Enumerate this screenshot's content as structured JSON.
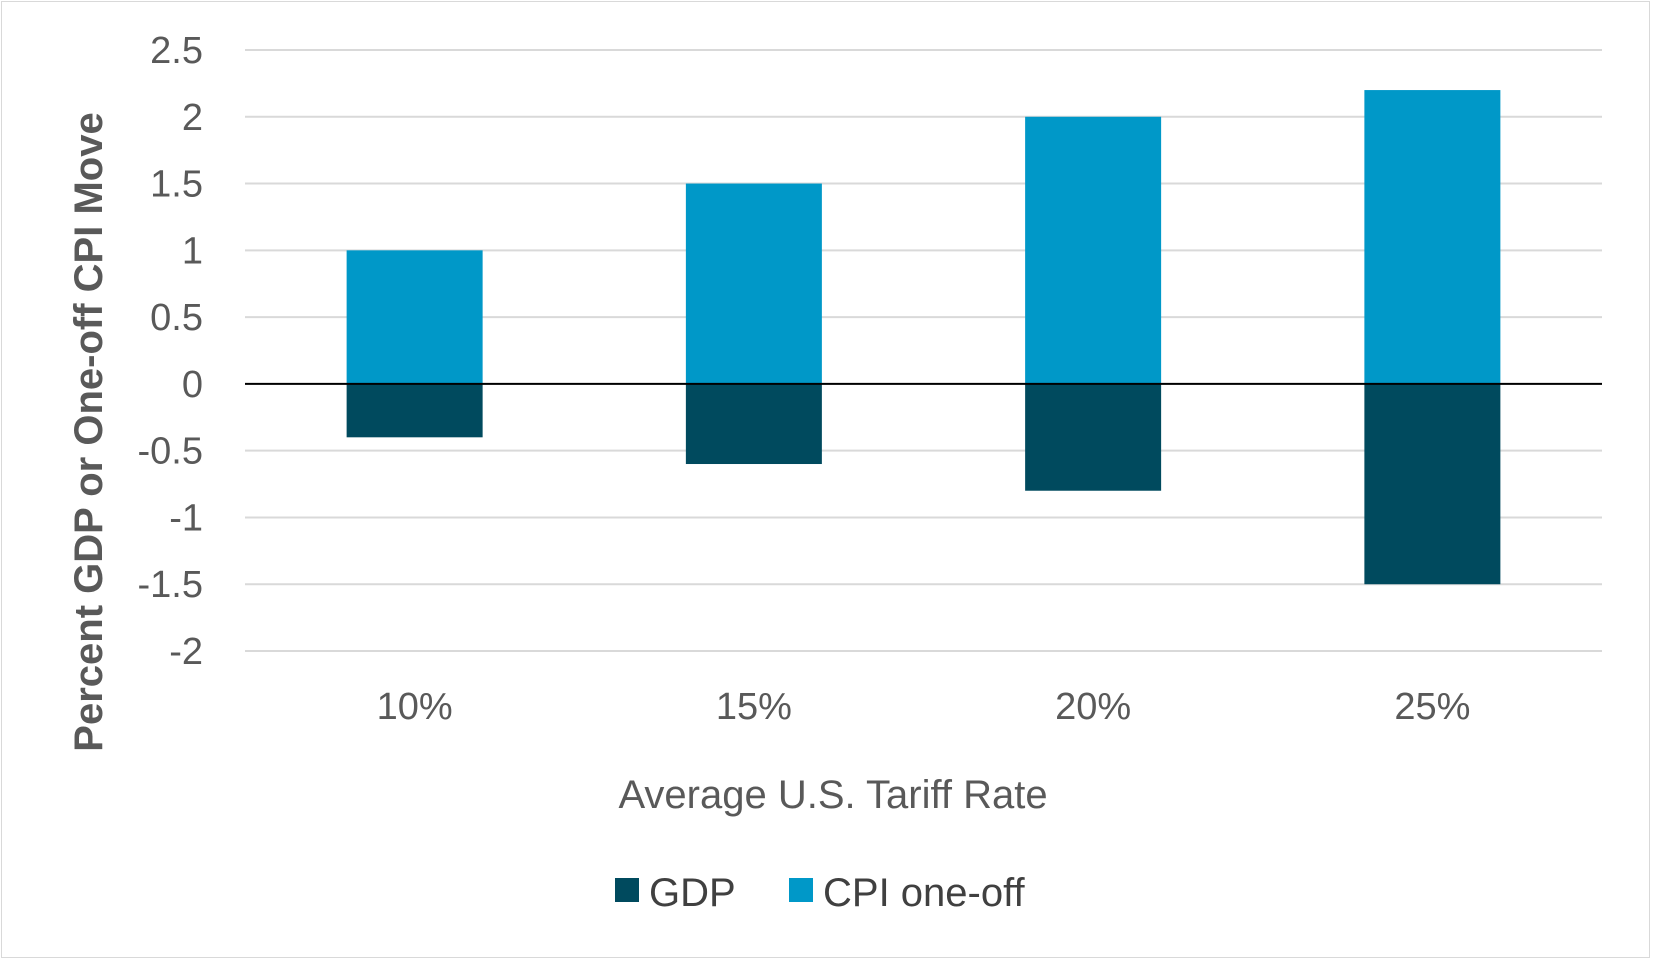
{
  "chart_data": {
    "type": "bar",
    "stacked": true,
    "title": "",
    "categories": [
      "10%",
      "15%",
      "20%",
      "25%"
    ],
    "series": [
      {
        "name": "GDP",
        "values": [
          -0.4,
          -0.6,
          -0.8,
          -1.5
        ],
        "color": "#004a5e"
      },
      {
        "name": "CPI one-off",
        "values": [
          1.0,
          1.5,
          2.0,
          2.2
        ],
        "color": "#0098c8"
      }
    ],
    "xlabel": "Average U.S. Tariff Rate",
    "ylabel": "Percent GDP or One-off CPI Move",
    "ylim": [
      -2,
      2.5
    ],
    "yticks": [
      2.5,
      2,
      1.5,
      1,
      0.5,
      0,
      -0.5,
      -1,
      -1.5,
      -2
    ],
    "ytick_labels": [
      "2.5",
      "2",
      "1.5",
      "1",
      "0.5",
      "0",
      "-0.5",
      "-1",
      "-1.5",
      "-2"
    ],
    "grid": true,
    "legend_position": "bottom"
  }
}
